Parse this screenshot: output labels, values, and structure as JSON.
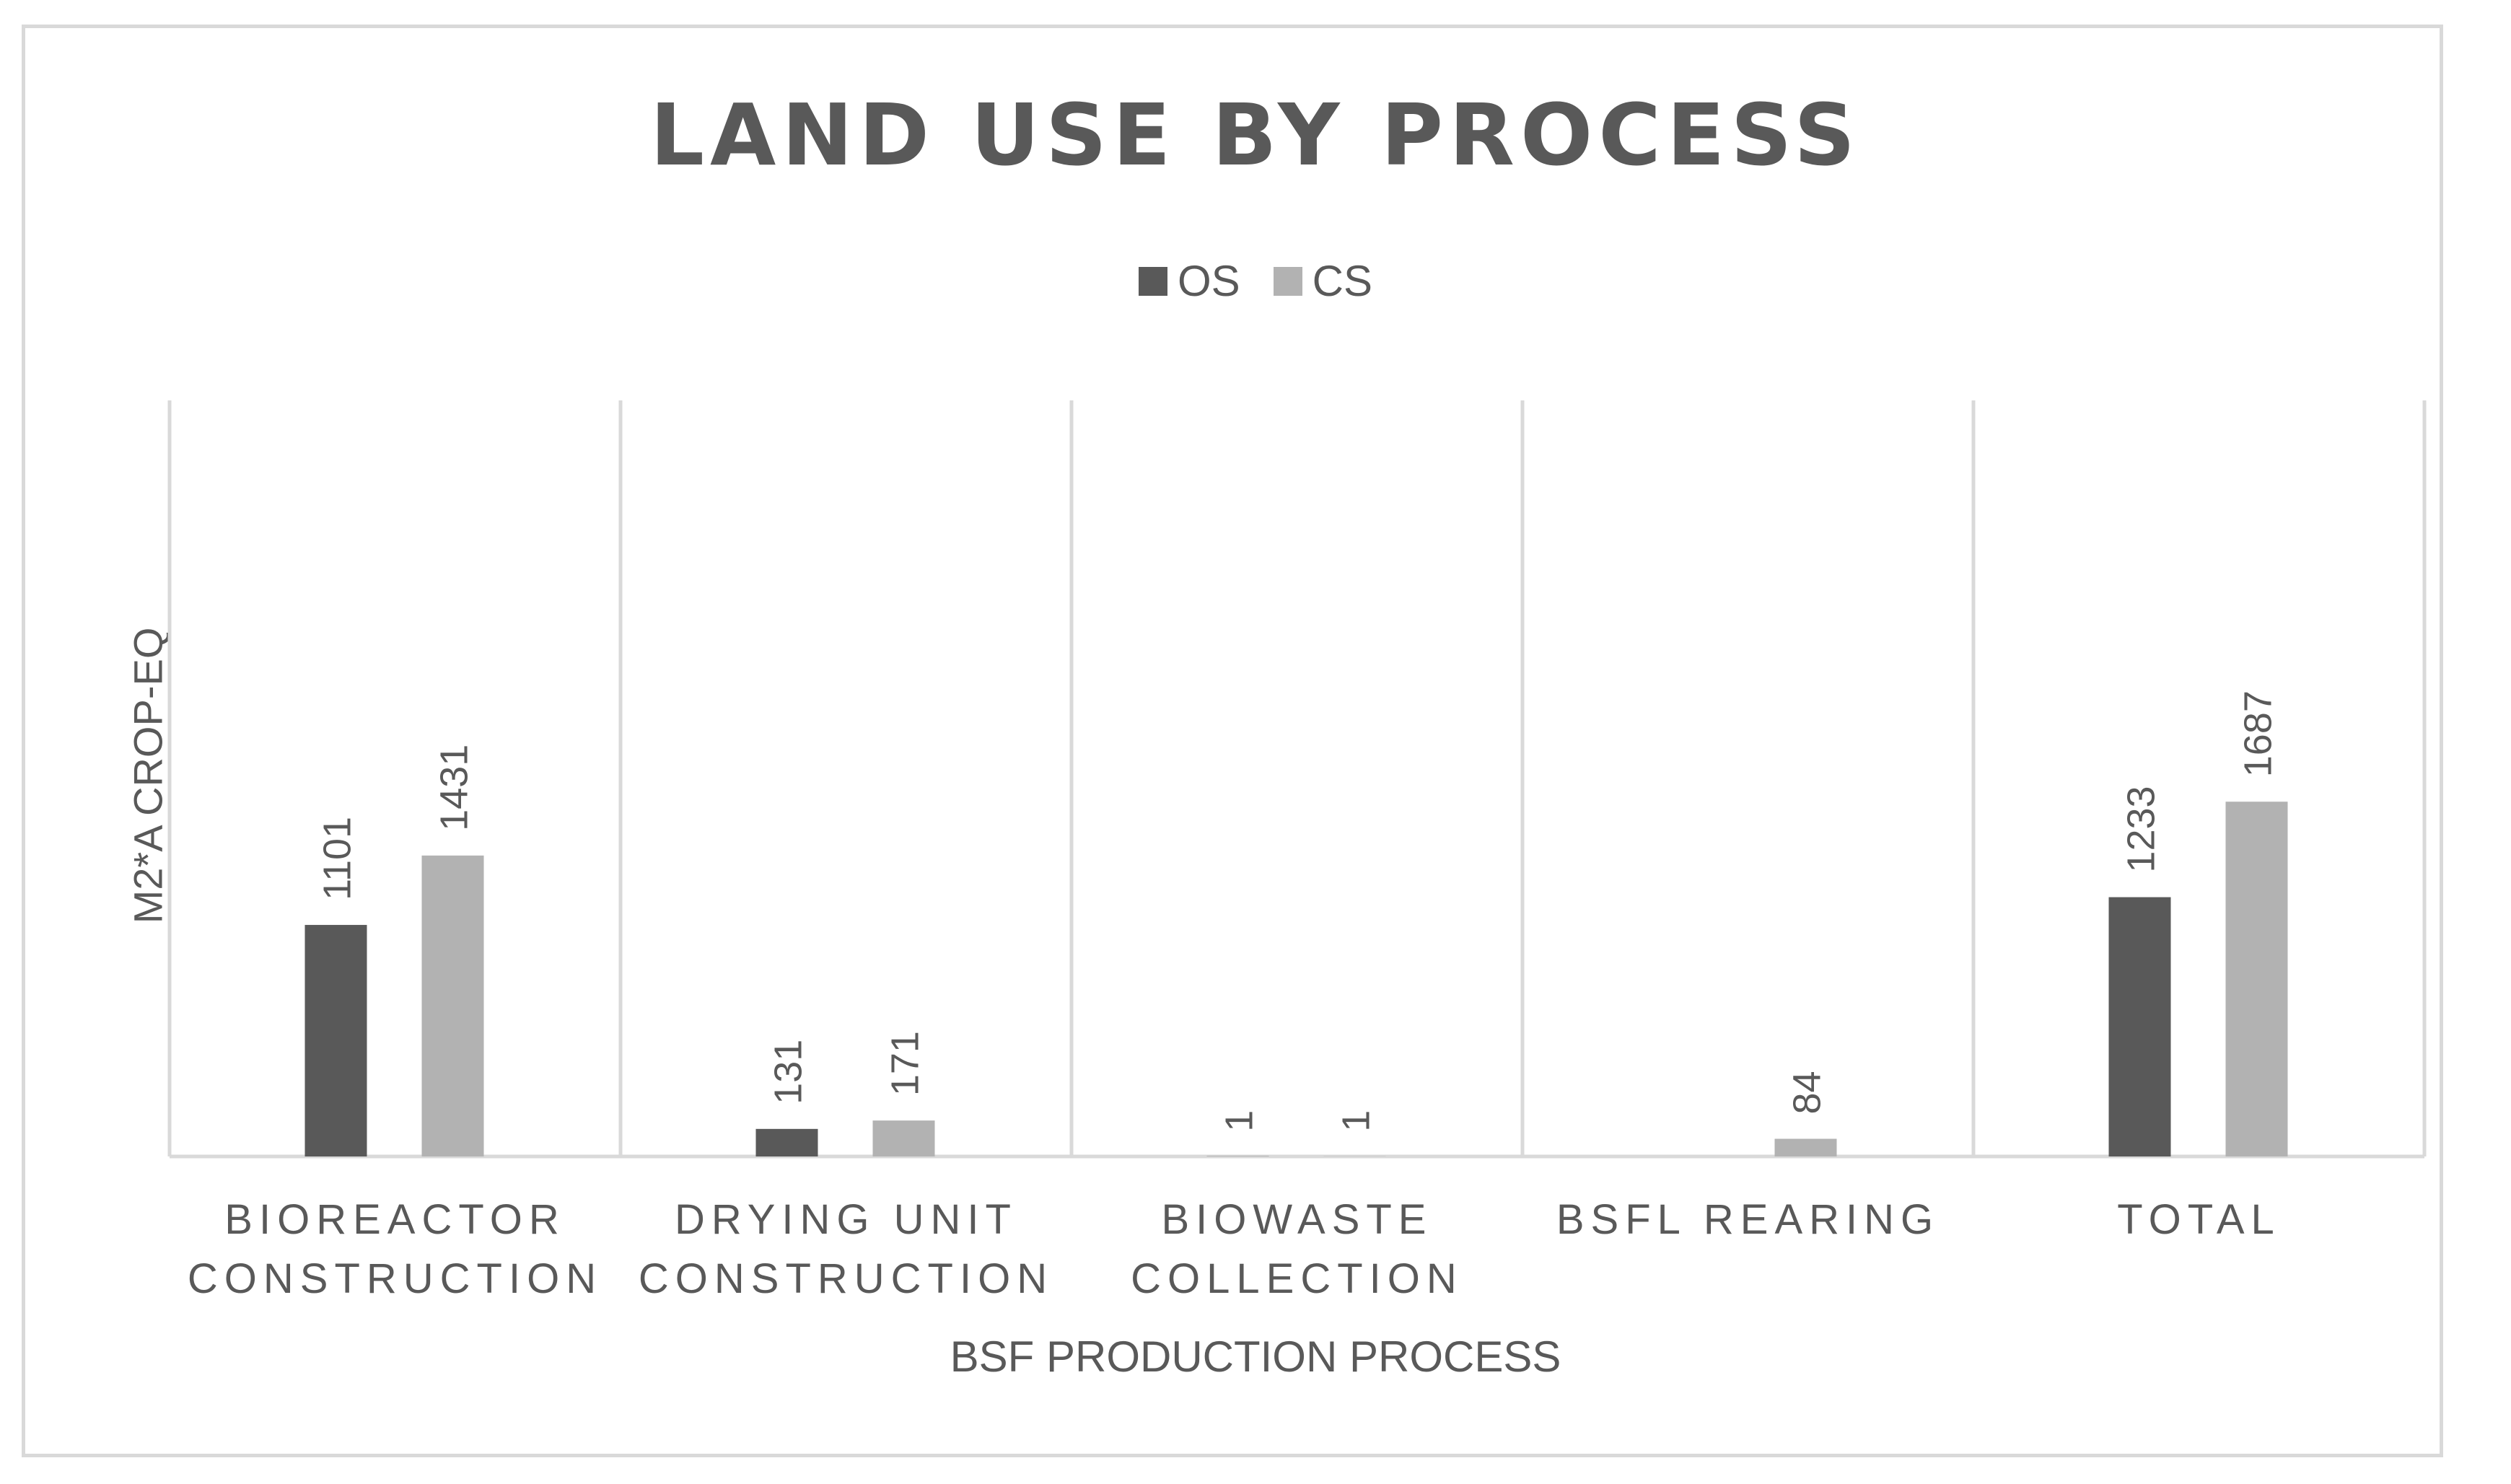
{
  "chart_data": {
    "type": "bar",
    "title": "LAND USE BY PROCESS",
    "xlabel": "BSF PRODUCTION PROCESS",
    "ylabel": "M2*A CROP-EQ",
    "categories": [
      [
        "BIOREACTOR",
        "CONSTRUCTION"
      ],
      [
        "DRYING UNIT",
        "CONSTRUCTION"
      ],
      [
        "BIOWASTE",
        "COLLECTION"
      ],
      [
        "BSFL REARING"
      ],
      [
        "TOTAL"
      ]
    ],
    "series": [
      {
        "name": "OS",
        "color": "#595959",
        "values": [
          1101,
          131,
          1,
          null,
          1233
        ]
      },
      {
        "name": "CS",
        "color": "#b2b2b2",
        "values": [
          1431,
          171,
          1,
          84,
          1687
        ]
      }
    ],
    "ylim": [
      0,
      1800
    ],
    "grid": true,
    "legend": "top-center"
  }
}
